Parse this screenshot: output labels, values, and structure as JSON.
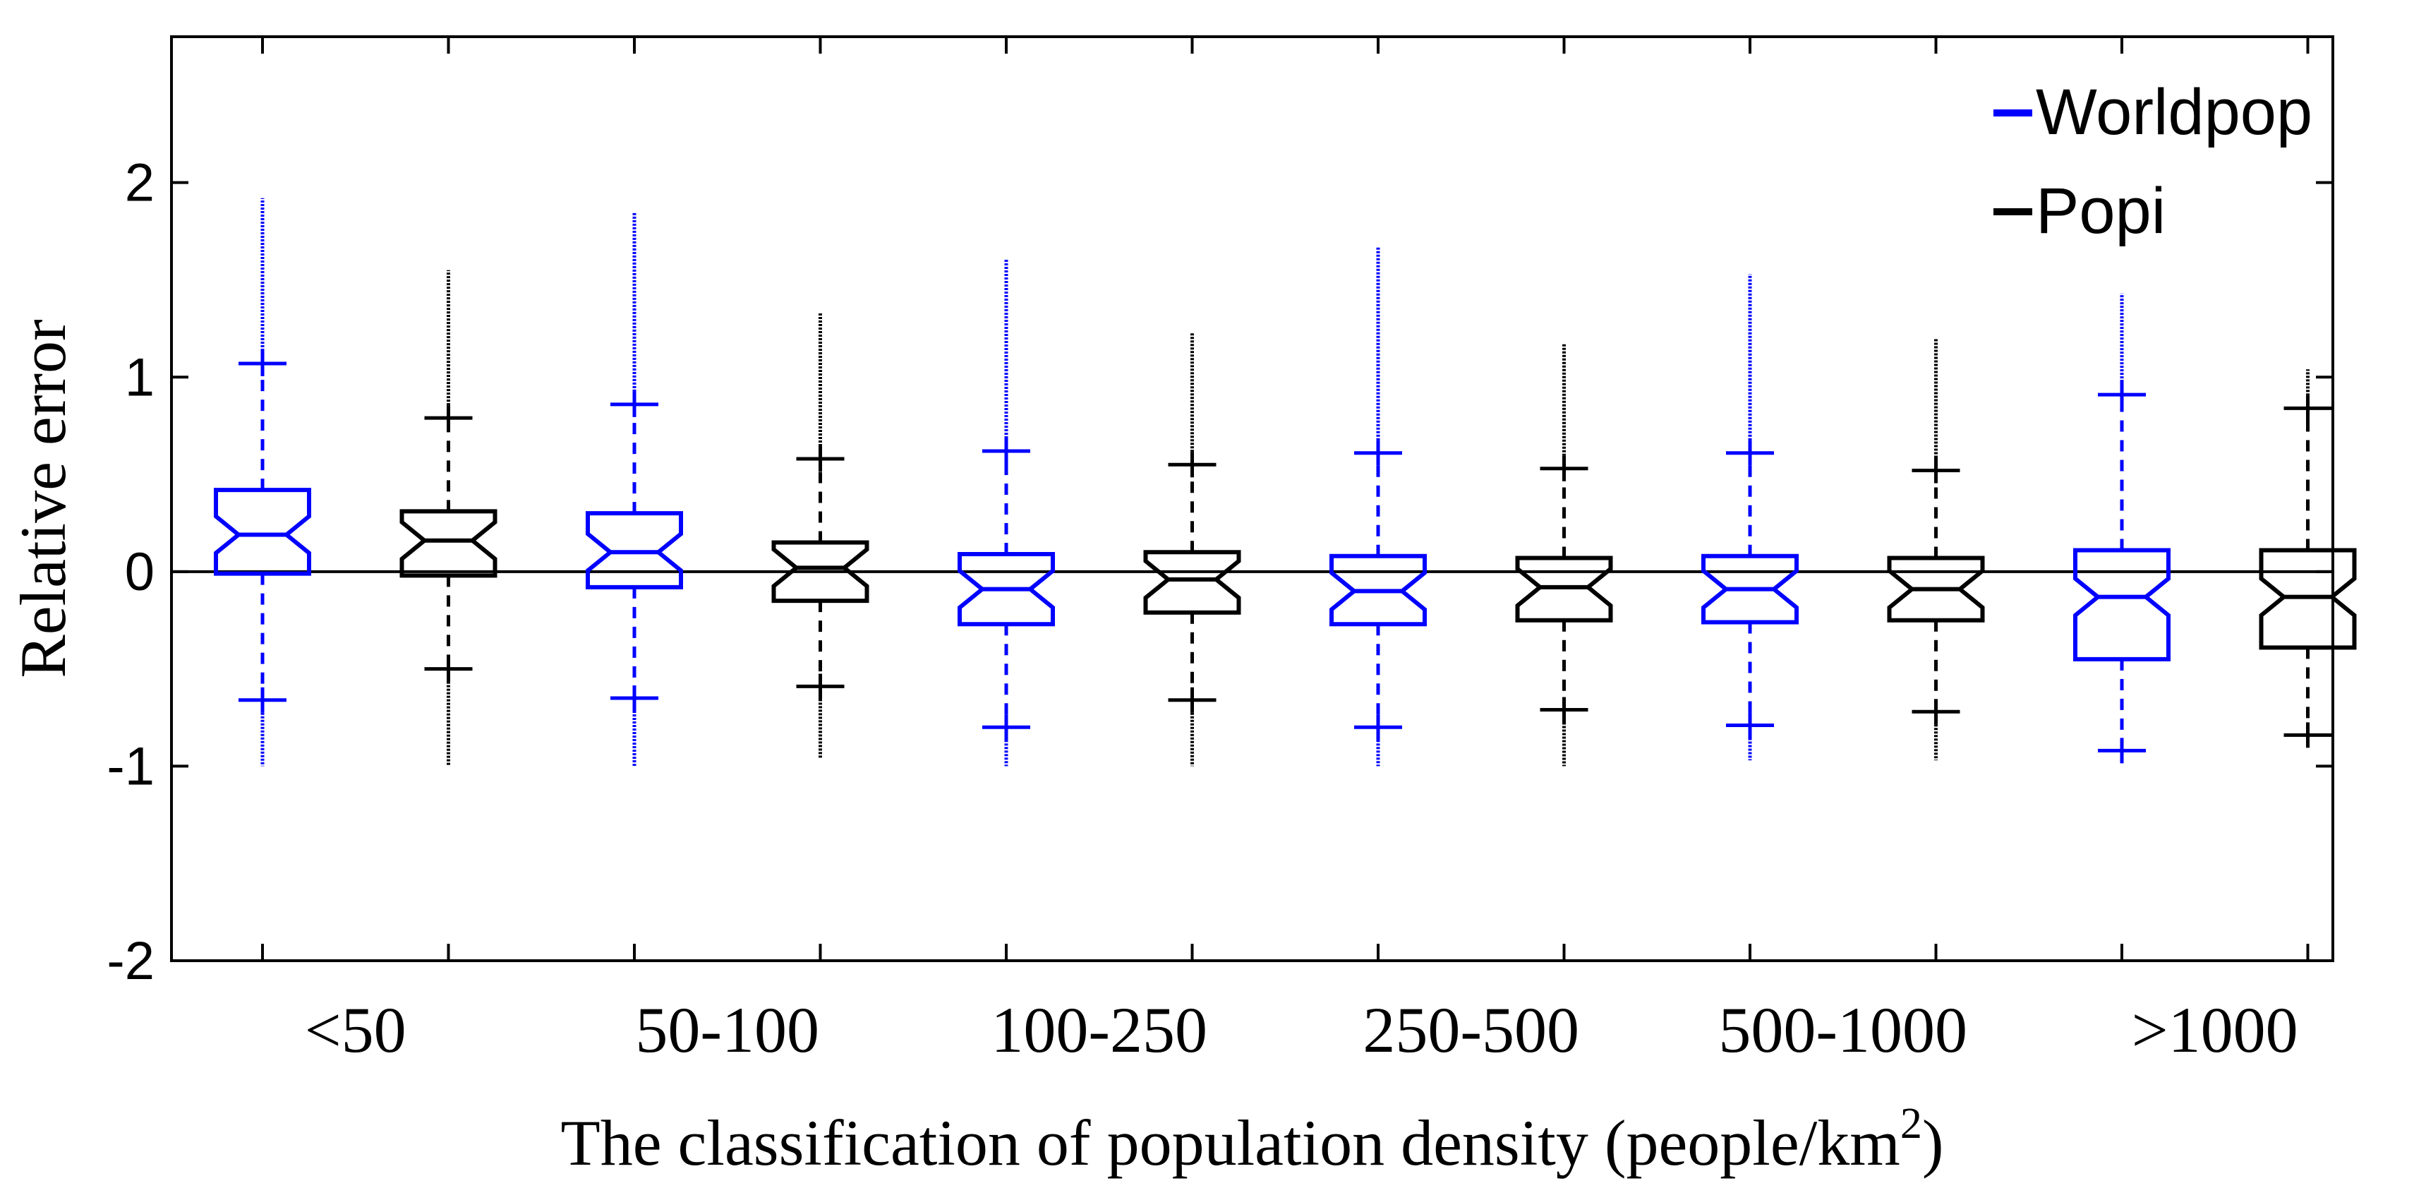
{
  "chart_data": {
    "type": "box",
    "title": "",
    "xlabel": "The classification of population density (people/km",
    "xlabel_sup": "2",
    "xlabel_end": ")",
    "ylabel": "Relative error",
    "ylim": [
      -2,
      2.75
    ],
    "yticks": [
      -2,
      -1,
      0,
      1,
      2
    ],
    "reference_line": 0,
    "categories": [
      "<50",
      "50-100",
      "100-250",
      "250-500",
      "500-1000",
      ">1000"
    ],
    "legend_position": "top-right",
    "series": [
      {
        "name": "Worldpop",
        "color": "#0000ff",
        "boxes": [
          {
            "category": "<50",
            "whisker_low": -0.66,
            "q1": -0.01,
            "median": 0.19,
            "q3": 0.42,
            "whisker_high": 1.07,
            "outlier_low": -1.0,
            "outlier_high": 1.92
          },
          {
            "category": "50-100",
            "whisker_low": -0.65,
            "q1": -0.08,
            "median": 0.1,
            "q3": 0.3,
            "whisker_high": 0.86,
            "outlier_low": -1.0,
            "outlier_high": 1.85
          },
          {
            "category": "100-250",
            "whisker_low": -0.8,
            "q1": -0.27,
            "median": -0.09,
            "q3": 0.09,
            "whisker_high": 0.62,
            "outlier_low": -1.0,
            "outlier_high": 1.61
          },
          {
            "category": "250-500",
            "whisker_low": -0.8,
            "q1": -0.27,
            "median": -0.1,
            "q3": 0.08,
            "whisker_high": 0.61,
            "outlier_low": -1.0,
            "outlier_high": 1.67
          },
          {
            "category": "500-1000",
            "whisker_low": -0.79,
            "q1": -0.26,
            "median": -0.09,
            "q3": 0.08,
            "whisker_high": 0.61,
            "outlier_low": -0.97,
            "outlier_high": 1.53
          },
          {
            "category": ">1000",
            "whisker_low": -0.92,
            "q1": -0.45,
            "median": -0.13,
            "q3": 0.11,
            "whisker_high": 0.91,
            "outlier_low": -0.92,
            "outlier_high": 1.43
          }
        ]
      },
      {
        "name": "Popi",
        "color": "#000000",
        "boxes": [
          {
            "category": "<50",
            "whisker_low": -0.5,
            "q1": -0.02,
            "median": 0.16,
            "q3": 0.31,
            "whisker_high": 0.79,
            "outlier_low": -1.0,
            "outlier_high": 1.55
          },
          {
            "category": "50-100",
            "whisker_low": -0.59,
            "q1": -0.15,
            "median": 0.02,
            "q3": 0.15,
            "whisker_high": 0.58,
            "outlier_low": -0.96,
            "outlier_high": 1.33
          },
          {
            "category": "100-250",
            "whisker_low": -0.66,
            "q1": -0.21,
            "median": -0.04,
            "q3": 0.1,
            "whisker_high": 0.55,
            "outlier_low": -1.0,
            "outlier_high": 1.23
          },
          {
            "category": "250-500",
            "whisker_low": -0.71,
            "q1": -0.25,
            "median": -0.08,
            "q3": 0.07,
            "whisker_high": 0.53,
            "outlier_low": -1.0,
            "outlier_high": 1.17
          },
          {
            "category": "500-1000",
            "whisker_low": -0.72,
            "q1": -0.25,
            "median": -0.09,
            "q3": 0.07,
            "whisker_high": 0.52,
            "outlier_low": -0.97,
            "outlier_high": 1.2
          },
          {
            "category": ">1000",
            "whisker_low": -0.84,
            "q1": -0.39,
            "median": -0.13,
            "q3": 0.11,
            "whisker_high": 0.84,
            "outlier_low": -0.84,
            "outlier_high": 1.04
          }
        ]
      }
    ]
  }
}
